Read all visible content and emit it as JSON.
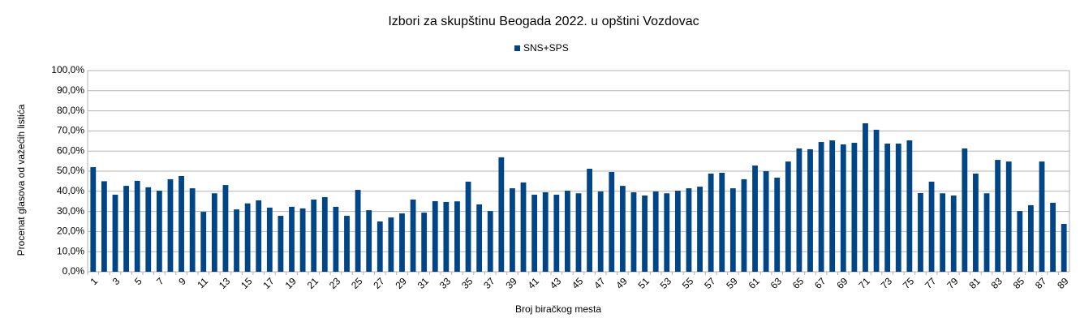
{
  "chart_data": {
    "type": "bar",
    "title": "Izbori za skupštinu Beogada 2022. u opštini Vozdovac",
    "x_label": "Broj biračkog mesta",
    "y_label": "Procenat glasova od važećih listića",
    "legend": "top",
    "grid": true,
    "categories": [
      "1",
      null,
      "3",
      null,
      "5",
      null,
      "7",
      null,
      "9",
      null,
      "11",
      null,
      "13",
      null,
      "15",
      null,
      "17",
      null,
      "19",
      null,
      "21",
      null,
      "23",
      null,
      "25",
      null,
      "27",
      null,
      "29",
      null,
      "31",
      null,
      "33",
      null,
      "35",
      null,
      "37",
      null,
      "39",
      null,
      "41",
      null,
      "43",
      null,
      "45",
      null,
      "47",
      null,
      "49",
      null,
      "51",
      null,
      "53",
      null,
      "55",
      null,
      "57",
      null,
      "59",
      null,
      "61",
      null,
      "63",
      null,
      "65",
      null,
      "67",
      null,
      "69",
      null,
      "71",
      null,
      "73",
      null,
      "75",
      null,
      "77",
      null,
      "79",
      null,
      "81",
      null,
      "83",
      null,
      "85",
      null,
      "87",
      null,
      "89"
    ],
    "series": [
      {
        "name": "SNS+SPS",
        "color": "#004586",
        "values": [
          52.0,
          45.0,
          38.3,
          42.7,
          45.2,
          42.0,
          40.3,
          46.0,
          47.6,
          41.5,
          29.8,
          39.0,
          43.1,
          31.0,
          34.0,
          35.5,
          31.9,
          27.8,
          32.3,
          31.5,
          35.9,
          37.1,
          32.3,
          27.8,
          40.7,
          30.6,
          25.0,
          27.0,
          29.0,
          35.9,
          29.4,
          35.1,
          34.7,
          35.0,
          44.8,
          33.5,
          30.2,
          56.9,
          41.5,
          44.4,
          38.3,
          39.5,
          38.3,
          40.3,
          39.0,
          51.2,
          39.9,
          49.6,
          42.7,
          39.5,
          37.9,
          39.9,
          39.0,
          40.3,
          41.5,
          42.3,
          48.8,
          49.2,
          41.5,
          46.0,
          52.8,
          50.0,
          46.8,
          54.8,
          61.3,
          60.9,
          64.5,
          65.3,
          63.3,
          64.1,
          73.8,
          70.6,
          63.7,
          63.7,
          65.3,
          39.1,
          44.8,
          39.0,
          37.9,
          61.3,
          48.8,
          39.0,
          55.6,
          54.8,
          30.2,
          33.1,
          54.8,
          34.3,
          23.8
        ]
      }
    ],
    "ylim": [
      0,
      100
    ],
    "yticks": [
      {
        "value": 0,
        "label": "0,0%"
      },
      {
        "value": 10,
        "label": "10,0%"
      },
      {
        "value": 20,
        "label": "20,0%"
      },
      {
        "value": 30,
        "label": "30,0%"
      },
      {
        "value": 40,
        "label": "40,0%"
      },
      {
        "value": 50,
        "label": "50,0%"
      },
      {
        "value": 60,
        "label": "60,0%"
      },
      {
        "value": 70,
        "label": "70,0%"
      },
      {
        "value": 80,
        "label": "80,0%"
      },
      {
        "value": 90,
        "label": "90,0%"
      },
      {
        "value": 100,
        "label": "100,0%"
      }
    ]
  }
}
